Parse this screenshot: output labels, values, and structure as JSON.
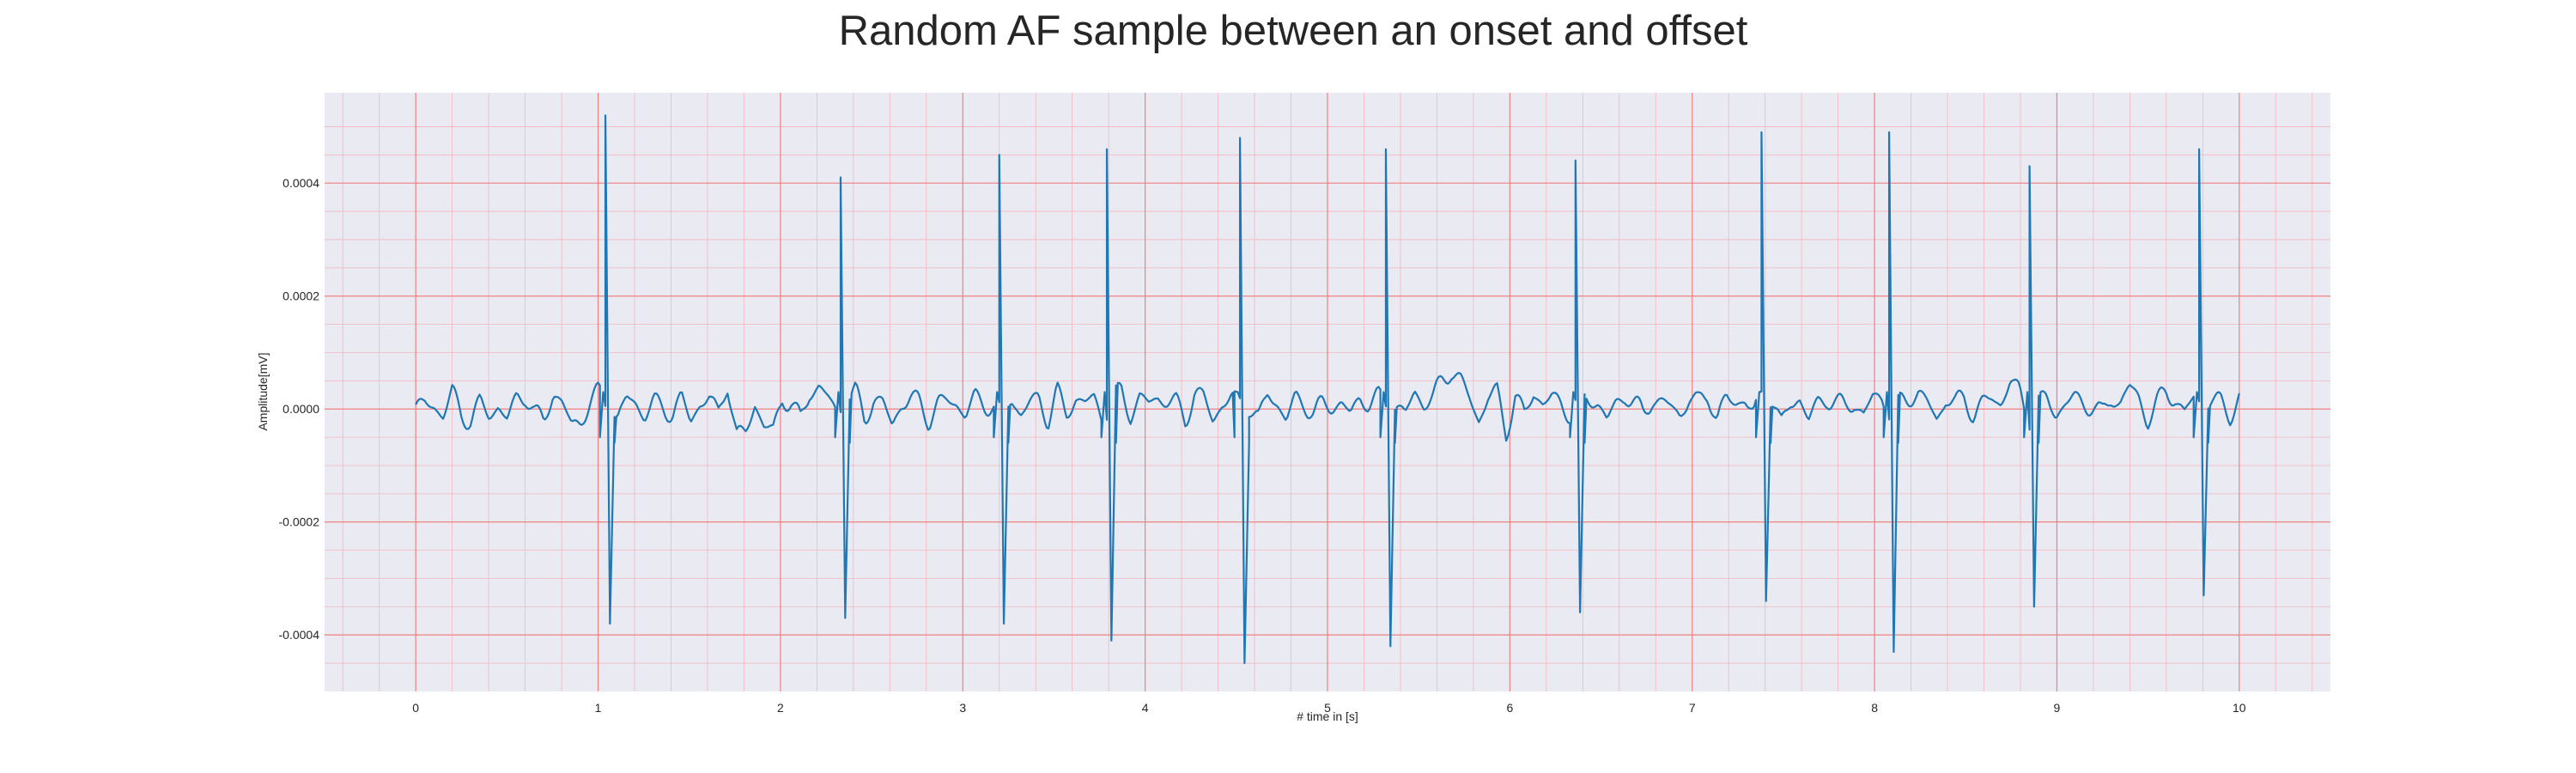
{
  "chart_data": {
    "type": "line",
    "title": "Random AF sample between an onset and offset",
    "xlabel": "# time in [s]",
    "ylabel": "Amplitude[mV]",
    "xlim": [
      -0.5,
      10.5
    ],
    "ylim": [
      -0.0005,
      0.00056
    ],
    "x_ticks": [
      "0",
      "1",
      "2",
      "3",
      "4",
      "5",
      "6",
      "7",
      "8",
      "9",
      "10"
    ],
    "y_ticks": [
      "0.0004",
      "0.0002",
      "0.0000",
      "-0.0002",
      "-0.0004"
    ],
    "grid": true,
    "colors": {
      "line": "#1f77b4",
      "major_grid": "#f08080",
      "minor_grid": "#f4b6bd",
      "background": "#eaeaf2"
    },
    "sample_rate_hz": 100,
    "beats": [
      {
        "t": 1.04,
        "peak": 0.00052,
        "trough": -0.00038
      },
      {
        "t": 2.33,
        "peak": 0.00041,
        "trough": -0.00037
      },
      {
        "t": 3.2,
        "peak": 0.00045,
        "trough": -0.00038
      },
      {
        "t": 3.79,
        "peak": 0.00046,
        "trough": -0.00041
      },
      {
        "t": 4.52,
        "peak": 0.00048,
        "trough": -0.00045
      },
      {
        "t": 5.32,
        "peak": 0.00046,
        "trough": -0.00042
      },
      {
        "t": 6.36,
        "peak": 0.00044,
        "trough": -0.00036
      },
      {
        "t": 7.38,
        "peak": 0.00049,
        "trough": -0.00034
      },
      {
        "t": 8.08,
        "peak": 0.00049,
        "trough": -0.00043
      },
      {
        "t": 8.85,
        "peak": 0.00043,
        "trough": -0.00035
      },
      {
        "t": 9.78,
        "peak": 0.00046,
        "trough": -0.00033
      }
    ],
    "baseline": [
      0.0,
      1e-05,
      5e-06,
      -1e-05,
      3e-05,
      -1e-05,
      -2e-05,
      1e-05,
      -1e-05,
      5e-06,
      -2e-05,
      2e-05,
      2.5e-05,
      -1e-05,
      -2e-05,
      3e-05,
      1e-05,
      -3e-05,
      -2e-05,
      1e-05,
      3e-05,
      1e-05,
      -2e-05,
      2e-05,
      1e-05,
      -1e-05,
      1e-05,
      5e-06,
      -1e-05,
      2e-05,
      -2e-05,
      1e-05,
      2e-05,
      -1e-05,
      5e-05,
      -5e-05,
      -4e-05,
      1e-05,
      -3e-05,
      -4e-05,
      2e-05,
      1e-05,
      -2e-05,
      3e-05,
      4e-05,
      2e-05,
      -1e-05,
      2e-05,
      3e-05,
      -2e-05,
      2e-05,
      1e-05,
      -3e-05,
      1e-05,
      2e-05,
      1e-05,
      -2e-05,
      1e-05,
      1.5e-05,
      1e-05,
      -1e-05,
      2e-05,
      1e-05,
      5e-06,
      -1e-05,
      2e-05,
      -1e-05,
      1e-05,
      2e-05,
      -2e-05,
      3e-05,
      -1e-05,
      2e-05,
      1e-05,
      2e-05,
      -2e-05,
      2e-05,
      3e-05,
      -1e-05,
      2e-05,
      1e-05,
      2e-05,
      1.5e-05,
      1e-05,
      -2e-05,
      3e-05,
      2e-05,
      -2e-05,
      1e-05,
      2e-05,
      1e-05,
      5e-06,
      -2e-05,
      3e-05,
      1e-05,
      -2e-05,
      2e-05,
      1e-05,
      -1e-05,
      1e-05,
      5e-06,
      1e-05,
      -1e-05,
      2e-05,
      1e-05,
      2e-05,
      1e-05,
      5e-06,
      -1e-05,
      3e-05,
      1e-05,
      2e-05,
      5e-05,
      7e-05,
      5e-05,
      2e-05,
      -2e-05,
      2e-05,
      3e-05,
      -4e-05,
      2e-05,
      -1e-05,
      3e-05,
      1e-05,
      2e-05,
      1e-05,
      -1e-05,
      2e-05,
      2e-05,
      1e-05,
      -2e-05,
      1e-05,
      2.5e-05,
      1e-05,
      -1e-05,
      2e-05,
      1e-05,
      5e-06,
      -1e-05,
      2e-05,
      1e-05,
      3e-05,
      -2e-05,
      2e-05,
      1e-05,
      2e-05,
      -1e-05,
      3e-05,
      2e-05,
      -3e-05,
      1e-05,
      2e-05,
      -2e-05,
      1e-05,
      2e-05,
      1e-05,
      5e-06,
      1e-05,
      -1e-05,
      2e-05,
      2e-05,
      -1e-05,
      1e-05,
      2e-05,
      3e-05,
      1e-05,
      -2e-05,
      2e-05,
      1e-05,
      2e-05,
      -1e-05,
      1e-05,
      2e-05,
      1e-05,
      5e-05,
      3e-05,
      -2e-05,
      1e-05,
      2e-05,
      -1e-05,
      1e-05,
      2e-05,
      1e-05,
      5e-06,
      -1e-05,
      2e-05,
      1e-05,
      4e-05,
      2e-05,
      -2e-05,
      1e-05,
      3e-05,
      2e-05,
      -1e-05,
      2e-05,
      1e-05,
      1.5e-05,
      1e-05,
      -1e-05,
      2e-05
    ]
  }
}
